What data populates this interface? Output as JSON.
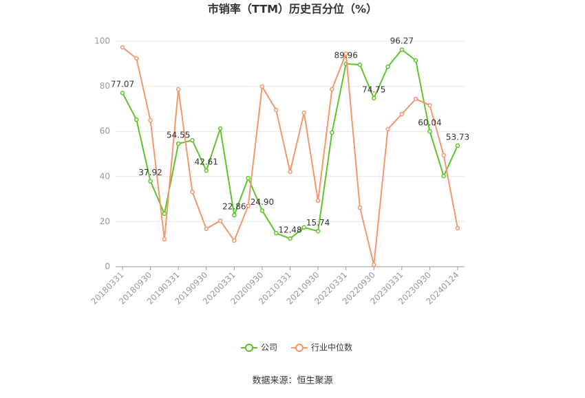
{
  "chart_data": {
    "type": "line",
    "title": "市销率（TTM）历史百分位（%）",
    "categories": [
      "20180331",
      null,
      "20180930",
      null,
      "20190331",
      null,
      "20190930",
      null,
      "20200331",
      null,
      "20200930",
      null,
      "20210331",
      null,
      "20210930",
      null,
      "20220331",
      null,
      "20220930",
      null,
      "20230331",
      null,
      "20230930",
      null,
      "20240124"
    ],
    "series": [
      {
        "name": "公司",
        "color": "#5cc42a",
        "values": [
          77.07,
          65.2,
          37.92,
          23.5,
          54.55,
          56.1,
          42.61,
          61.3,
          22.86,
          39.3,
          24.9,
          14.9,
          12.48,
          17.4,
          15.74,
          59.5,
          89.96,
          89.6,
          74.75,
          88.7,
          96.27,
          91.5,
          60.04,
          40.2,
          53.73
        ],
        "value_labels": [
          "77.07",
          null,
          "37.92",
          null,
          "54.55",
          null,
          "42.61",
          null,
          "22.86",
          null,
          "24.90",
          null,
          "12.48",
          null,
          "15.74",
          null,
          "89.96",
          null,
          "74.75",
          null,
          "96.27",
          null,
          "60.04",
          null,
          "53.73"
        ]
      },
      {
        "name": "行业中位数",
        "color": "#f4956a",
        "values": [
          97.3,
          92.4,
          64.9,
          12.2,
          78.7,
          33.2,
          16.8,
          20.4,
          11.6,
          27.0,
          79.9,
          69.5,
          42.1,
          68.3,
          29.3,
          78.7,
          94.5,
          26.2,
          0.9,
          61.0,
          67.7,
          74.4,
          71.6,
          49.4,
          17.1
        ]
      }
    ],
    "ylim": [
      0,
      100
    ],
    "yticks": [
      0,
      20,
      40,
      60,
      80,
      100
    ],
    "grid": true,
    "legend": "bottom",
    "source": "数据来源：恒生聚源"
  }
}
